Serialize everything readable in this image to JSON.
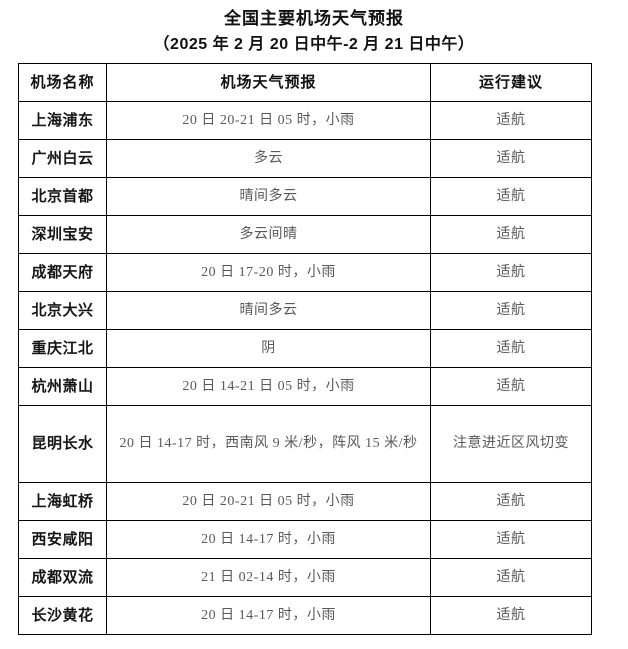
{
  "page": {
    "title": "全国主要机场天气预报",
    "subtitle": "（2025 年 2 月 20 日中午-2 月 21 日中午）"
  },
  "table": {
    "headers": [
      "机场名称",
      "机场天气预报",
      "运行建议"
    ],
    "rows": [
      {
        "airport": "上海浦东",
        "forecast": "20 日 20-21 日 05 时，小雨",
        "advice": "适航"
      },
      {
        "airport": "广州白云",
        "forecast": "多云",
        "advice": "适航"
      },
      {
        "airport": "北京首都",
        "forecast": "晴间多云",
        "advice": "适航"
      },
      {
        "airport": "深圳宝安",
        "forecast": "多云间晴",
        "advice": "适航"
      },
      {
        "airport": "成都天府",
        "forecast": "20 日 17-20 时，小雨",
        "advice": "适航"
      },
      {
        "airport": "北京大兴",
        "forecast": "晴间多云",
        "advice": "适航"
      },
      {
        "airport": "重庆江北",
        "forecast": "阴",
        "advice": "适航"
      },
      {
        "airport": "杭州萧山",
        "forecast": "20 日 14-21 日 05 时，小雨",
        "advice": "适航"
      },
      {
        "airport": "昆明长水",
        "forecast": "20 日 14-17 时，西南风 9 米/秒，阵风 15 米/秒",
        "advice": "注意进近区风切变"
      },
      {
        "airport": "上海虹桥",
        "forecast": "20 日 20-21 日 05 时，小雨",
        "advice": "适航"
      },
      {
        "airport": "西安咸阳",
        "forecast": "20 日 14-17 时，小雨",
        "advice": "适航"
      },
      {
        "airport": "成都双流",
        "forecast": "21 日 02-14 时，小雨",
        "advice": "适航"
      },
      {
        "airport": "长沙黄花",
        "forecast": "20 日 14-17 时，小雨",
        "advice": "适航"
      }
    ]
  }
}
